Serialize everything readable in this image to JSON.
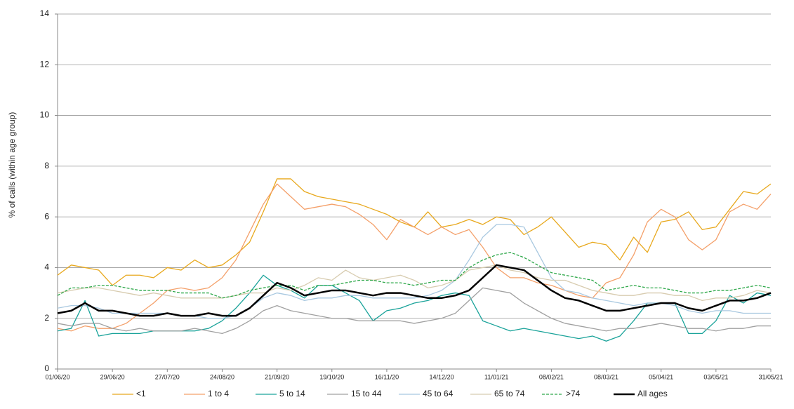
{
  "chart_data": {
    "type": "line",
    "y_label": "% of calls (within age group)",
    "categories": [
      "01/06/20",
      null,
      null,
      null,
      "29/06/20",
      null,
      null,
      null,
      "27/07/20",
      null,
      null,
      null,
      "24/08/20",
      null,
      null,
      null,
      "21/09/20",
      null,
      null,
      null,
      "19/10/20",
      null,
      null,
      null,
      "16/11/20",
      null,
      null,
      null,
      "14/12/20",
      null,
      null,
      null,
      "11/01/21",
      null,
      null,
      null,
      "08/02/21",
      null,
      null,
      null,
      "08/03/21",
      null,
      null,
      null,
      "05/04/21",
      null,
      null,
      null,
      "03/05/21",
      null,
      null,
      null,
      "31/05/21"
    ],
    "ylim": [
      0,
      14
    ],
    "yticks": [
      0,
      2,
      4,
      6,
      8,
      10,
      12,
      14
    ],
    "grid": true,
    "legend": "bottom",
    "series": [
      {
        "name": "<1",
        "color": "#e8a81c",
        "values": [
          3.7,
          4.1,
          4.0,
          3.9,
          3.3,
          3.7,
          3.7,
          3.6,
          4.0,
          3.9,
          4.3,
          4.0,
          4.1,
          4.5,
          5.0,
          6.2,
          7.5,
          7.5,
          7.0,
          6.8,
          6.7,
          6.6,
          6.5,
          6.3,
          6.1,
          5.8,
          5.6,
          6.2,
          5.6,
          5.7,
          5.9,
          5.7,
          6.0,
          5.9,
          5.3,
          5.6,
          6.0,
          5.4,
          4.8,
          5.0,
          4.9,
          4.3,
          5.2,
          4.6,
          5.8,
          5.9,
          6.2,
          5.5,
          5.6,
          6.3,
          7.0,
          6.9,
          7.3
        ]
      },
      {
        "name": "1 to 4",
        "color": "#f4a06a",
        "values": [
          1.6,
          1.5,
          1.7,
          1.6,
          1.6,
          1.8,
          2.2,
          2.6,
          3.1,
          3.2,
          3.1,
          3.2,
          3.6,
          4.3,
          5.4,
          6.5,
          7.3,
          6.8,
          6.3,
          6.4,
          6.5,
          6.4,
          6.1,
          5.7,
          5.1,
          5.9,
          5.6,
          5.3,
          5.6,
          5.3,
          5.5,
          4.8,
          4.0,
          3.6,
          3.6,
          3.4,
          3.3,
          3.1,
          2.9,
          2.8,
          3.4,
          3.6,
          4.5,
          5.8,
          6.3,
          6.0,
          5.1,
          4.7,
          5.1,
          6.2,
          6.5,
          6.3,
          6.9
        ]
      },
      {
        "name": "5 to 14",
        "color": "#1aa39a",
        "values": [
          1.5,
          1.6,
          2.7,
          1.3,
          1.4,
          1.4,
          1.4,
          1.5,
          1.5,
          1.5,
          1.5,
          1.6,
          1.9,
          2.4,
          3.0,
          3.7,
          3.3,
          3.1,
          2.8,
          3.3,
          3.3,
          3.0,
          2.7,
          1.9,
          2.3,
          2.4,
          2.6,
          2.7,
          2.9,
          3.0,
          2.9,
          1.9,
          1.7,
          1.5,
          1.6,
          1.5,
          1.4,
          1.3,
          1.2,
          1.3,
          1.1,
          1.3,
          1.9,
          2.6,
          2.6,
          2.6,
          1.4,
          1.4,
          1.9,
          2.9,
          2.6,
          3.0,
          2.9
        ]
      },
      {
        "name": "15 to 44",
        "color": "#a0a0a0",
        "values": [
          1.8,
          1.7,
          1.8,
          1.8,
          1.6,
          1.5,
          1.6,
          1.5,
          1.5,
          1.5,
          1.6,
          1.5,
          1.4,
          1.6,
          1.9,
          2.3,
          2.5,
          2.3,
          2.2,
          2.1,
          2.0,
          2.0,
          1.9,
          1.9,
          1.9,
          1.9,
          1.8,
          1.9,
          2.0,
          2.2,
          2.7,
          3.2,
          3.1,
          3.0,
          2.6,
          2.3,
          2.0,
          1.8,
          1.7,
          1.6,
          1.5,
          1.6,
          1.6,
          1.7,
          1.8,
          1.7,
          1.6,
          1.6,
          1.5,
          1.6,
          1.6,
          1.7,
          1.7
        ]
      },
      {
        "name": "45 to 64",
        "color": "#a8c8e0",
        "values": [
          2.4,
          2.5,
          2.5,
          2.4,
          2.2,
          2.2,
          2.2,
          2.2,
          2.2,
          2.1,
          2.1,
          2.0,
          2.0,
          2.1,
          2.4,
          2.8,
          3.0,
          2.9,
          2.7,
          2.8,
          2.8,
          2.9,
          2.9,
          2.8,
          2.8,
          2.8,
          2.8,
          2.9,
          3.1,
          3.5,
          4.3,
          5.2,
          5.7,
          5.7,
          5.6,
          4.6,
          3.6,
          3.1,
          3.0,
          2.8,
          2.7,
          2.6,
          2.5,
          2.6,
          2.6,
          2.5,
          2.3,
          2.2,
          2.3,
          2.3,
          2.2,
          2.2,
          2.2
        ]
      },
      {
        "name": "65 to 74",
        "color": "#d8ccb0",
        "values": [
          3.0,
          3.1,
          3.2,
          3.2,
          3.1,
          3.0,
          2.9,
          3.0,
          2.9,
          2.8,
          2.8,
          2.8,
          2.8,
          2.9,
          3.0,
          3.0,
          3.2,
          3.1,
          3.3,
          3.6,
          3.5,
          3.9,
          3.6,
          3.5,
          3.6,
          3.7,
          3.5,
          3.2,
          3.3,
          3.5,
          3.9,
          4.0,
          4.1,
          3.9,
          3.8,
          3.6,
          3.5,
          3.5,
          3.3,
          3.1,
          3.0,
          2.9,
          2.9,
          3.0,
          3.0,
          2.9,
          2.9,
          2.7,
          2.8,
          2.8,
          2.9,
          3.1,
          3.0
        ]
      },
      {
        "name": ">74",
        "color": "#2ea84a",
        "linestyle": "dashed",
        "values": [
          2.9,
          3.2,
          3.2,
          3.3,
          3.3,
          3.2,
          3.1,
          3.1,
          3.1,
          3.0,
          3.0,
          3.0,
          2.8,
          2.9,
          3.1,
          3.2,
          3.3,
          3.3,
          3.1,
          3.3,
          3.3,
          3.4,
          3.5,
          3.5,
          3.4,
          3.4,
          3.3,
          3.4,
          3.5,
          3.5,
          4.0,
          4.3,
          4.5,
          4.6,
          4.4,
          4.1,
          3.8,
          3.7,
          3.6,
          3.5,
          3.1,
          3.2,
          3.3,
          3.2,
          3.2,
          3.1,
          3.0,
          3.0,
          3.1,
          3.1,
          3.2,
          3.3,
          3.2
        ]
      },
      {
        "name": "All ages",
        "color": "#000000",
        "linewidth": 2.5,
        "values": [
          2.2,
          2.3,
          2.6,
          2.3,
          2.3,
          2.2,
          2.1,
          2.1,
          2.2,
          2.1,
          2.1,
          2.2,
          2.1,
          2.1,
          2.4,
          2.9,
          3.4,
          3.2,
          2.9,
          3.0,
          3.1,
          3.1,
          3.0,
          2.9,
          3.0,
          3.0,
          2.9,
          2.8,
          2.8,
          2.9,
          3.1,
          3.6,
          4.1,
          4.0,
          3.9,
          3.5,
          3.1,
          2.8,
          2.7,
          2.5,
          2.3,
          2.3,
          2.4,
          2.5,
          2.6,
          2.6,
          2.4,
          2.3,
          2.5,
          2.7,
          2.7,
          2.8,
          3.0
        ]
      }
    ]
  }
}
